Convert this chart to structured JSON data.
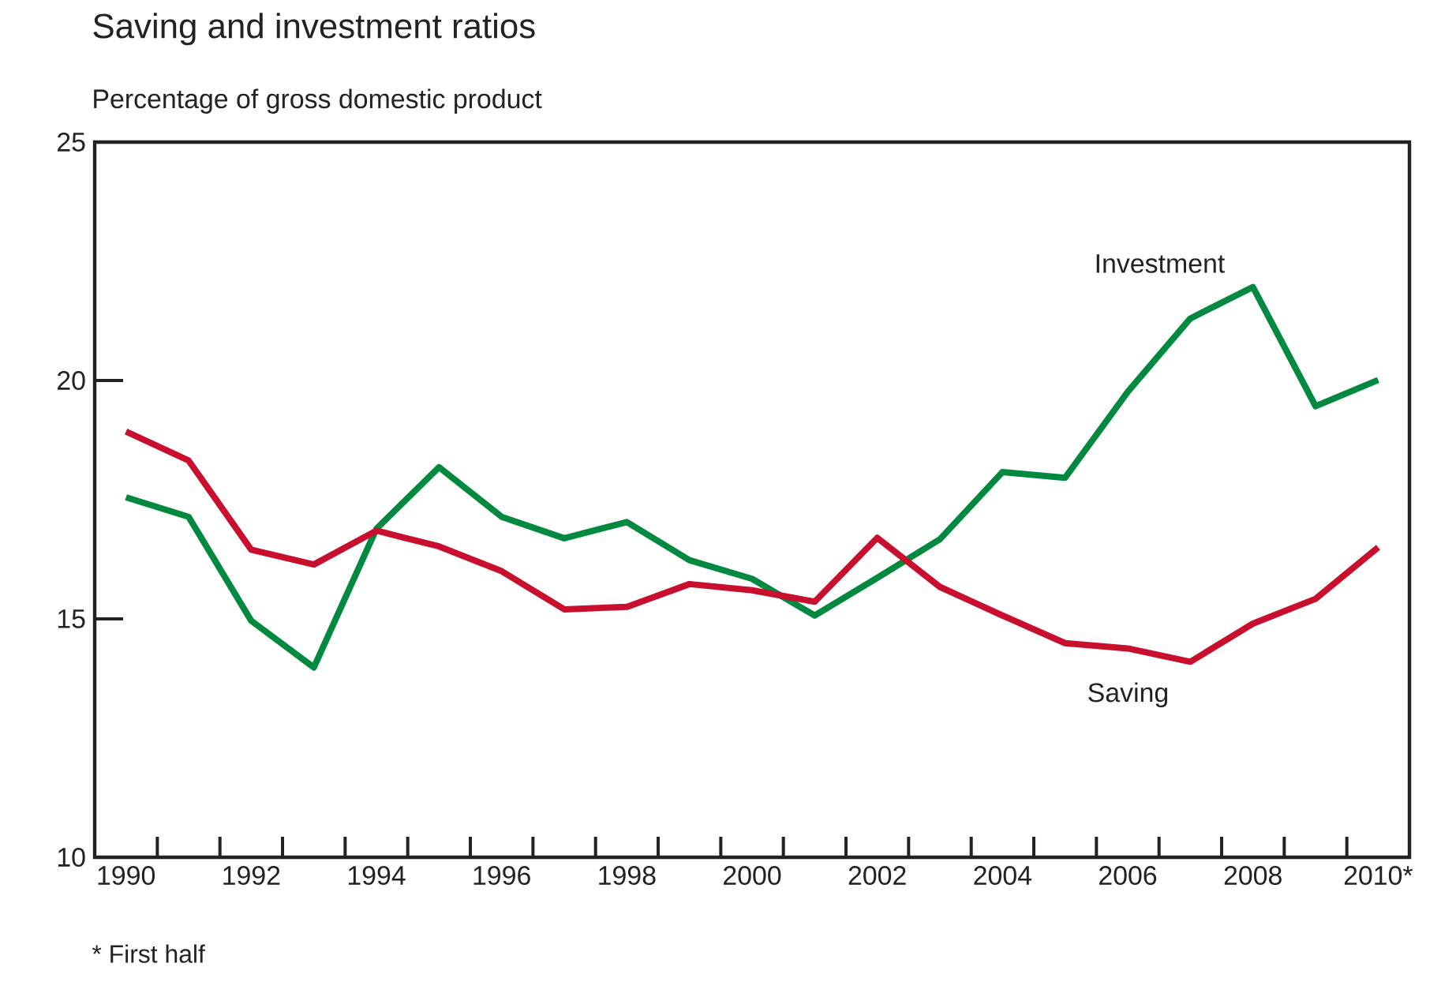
{
  "chart_data": {
    "type": "line",
    "title": "Saving and investment ratios",
    "ylabel": "Percentage of gross domestic product",
    "categories": [
      "1990",
      null,
      "1992",
      null,
      "1994",
      null,
      "1996",
      null,
      "1998",
      null,
      "2000",
      null,
      "2002",
      null,
      "2004",
      null,
      "2006",
      null,
      "2008",
      null,
      "2010*"
    ],
    "series": [
      {
        "name": "Investment",
        "color": "#00893f",
        "values": [
          17.55,
          17.14,
          14.96,
          13.98,
          16.89,
          18.18,
          17.14,
          16.69,
          17.03,
          16.23,
          15.84,
          15.07,
          15.86,
          16.67,
          18.08,
          17.96,
          19.76,
          21.3,
          21.96,
          19.46,
          20.01
        ]
      },
      {
        "name": "Saving",
        "color": "#c8102e",
        "values": [
          18.93,
          18.32,
          16.45,
          16.14,
          16.85,
          16.52,
          16.0,
          15.2,
          15.25,
          15.73,
          15.6,
          15.36,
          16.7,
          15.67,
          15.07,
          14.49,
          14.38,
          14.1,
          14.9,
          15.42,
          16.5
        ]
      }
    ],
    "ylim": [
      10,
      25
    ],
    "yticks": [
      10,
      15,
      20,
      25
    ],
    "grid": false,
    "legend": false,
    "marker": "none",
    "line_style": "solid",
    "annotations": [
      "* First half"
    ]
  }
}
